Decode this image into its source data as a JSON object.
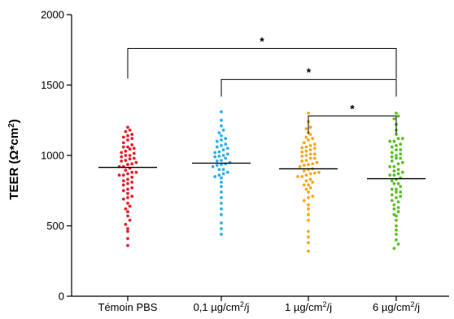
{
  "chart_data": {
    "type": "scatter",
    "subtype": "dot-plot",
    "title": "",
    "ylabel": "TEER (Ω*cm²)",
    "ylabel_main": "TEER (Ω*cm",
    "ylabel_sup": "2",
    "ylabel_end": ")",
    "ylim": [
      0,
      2000
    ],
    "yticks": [
      "0",
      "500",
      "1000",
      "1500",
      "2000"
    ],
    "grid": false,
    "categories": [
      {
        "main": "Témoin PBS",
        "sup": "",
        "end": ""
      },
      {
        "main": "0,1 µg/cm",
        "sup": "2",
        "end": "/j"
      },
      {
        "main": "1 µg/cm",
        "sup": "2",
        "end": "/j"
      },
      {
        "main": "6 µg/cm",
        "sup": "2",
        "end": "/j"
      }
    ],
    "series": [
      {
        "color": "#e8202a",
        "mean": 915,
        "values": [
          360,
          410,
          460,
          480,
          510,
          540,
          570,
          600,
          620,
          640,
          660,
          690,
          710,
          730,
          750,
          770,
          790,
          810,
          830,
          845,
          860,
          880,
          895,
          910,
          920,
          935,
          950,
          965,
          975,
          990,
          1000,
          1015,
          1030,
          1045,
          1060,
          1075,
          1090,
          1110,
          1130,
          1150,
          1170,
          1200,
          700,
          760,
          820,
          880,
          940,
          1000,
          1060,
          1120,
          860,
          960,
          1050,
          1140,
          800,
          920,
          980,
          1180,
          870,
          1020
        ]
      },
      {
        "color": "#2eb0ec",
        "mean": 945,
        "values": [
          440,
          480,
          520,
          580,
          620,
          660,
          700,
          740,
          780,
          810,
          840,
          860,
          880,
          900,
          920,
          935,
          950,
          965,
          980,
          995,
          1010,
          1025,
          1040,
          1060,
          1080,
          1100,
          1120,
          1140,
          1160,
          1180,
          1210,
          1250,
          1310,
          870,
          930,
          990,
          1050,
          1110,
          900,
          960,
          1020,
          1070,
          850,
          1000,
          940
        ]
      },
      {
        "color": "#f5a81c",
        "mean": 905,
        "values": [
          320,
          380,
          420,
          460,
          540,
          580,
          620,
          650,
          680,
          710,
          740,
          770,
          790,
          810,
          830,
          850,
          860,
          875,
          890,
          905,
          920,
          935,
          950,
          965,
          980,
          995,
          1010,
          1025,
          1040,
          1055,
          1070,
          1090,
          1110,
          1130,
          1160,
          1200,
          1240,
          1300,
          700,
          760,
          820,
          880,
          940,
          1000,
          1060,
          1120,
          850,
          960,
          1050,
          1150,
          790,
          900,
          1030,
          870,
          980,
          1080,
          930,
          1010,
          1190
        ]
      },
      {
        "color": "#5cbf26",
        "mean": 835,
        "values": [
          340,
          370,
          400,
          440,
          470,
          500,
          540,
          570,
          600,
          630,
          650,
          670,
          700,
          720,
          740,
          760,
          780,
          800,
          820,
          840,
          860,
          880,
          900,
          920,
          940,
          960,
          980,
          1000,
          1020,
          1040,
          1060,
          1080,
          1100,
          1120,
          1150,
          1180,
          1220,
          1260,
          1300,
          680,
          740,
          800,
          860,
          920,
          980,
          1040,
          1100,
          580,
          710,
          830,
          950,
          1070,
          620,
          890,
          1010,
          1280,
          760,
          870,
          990,
          1120
        ]
      }
    ],
    "significance": [
      {
        "from": 0,
        "to": 3,
        "label": "*",
        "level": 1760
      },
      {
        "from": 1,
        "to": 3,
        "label": "*",
        "level": 1540
      },
      {
        "from": 2,
        "to": 3,
        "label": "*",
        "level": 1280
      }
    ]
  }
}
